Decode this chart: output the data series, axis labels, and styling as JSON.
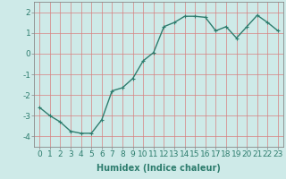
{
  "x": [
    0,
    1,
    2,
    3,
    4,
    5,
    6,
    7,
    8,
    9,
    10,
    11,
    12,
    13,
    14,
    15,
    16,
    17,
    18,
    19,
    20,
    21,
    22,
    23
  ],
  "y": [
    -2.6,
    -3.0,
    -3.3,
    -3.75,
    -3.85,
    -3.85,
    -3.2,
    -1.8,
    -1.65,
    -1.2,
    -0.35,
    0.05,
    1.3,
    1.5,
    1.8,
    1.8,
    1.75,
    1.1,
    1.3,
    0.75,
    1.3,
    1.85,
    1.5,
    1.1
  ],
  "line_color": "#2e7d6e",
  "marker": "+",
  "marker_size": 3,
  "bg_color": "#ceeae8",
  "grid_major_color": "#c8c8c8",
  "grid_minor_color": "#e0e0e0",
  "xlabel": "Humidex (Indice chaleur)",
  "xlim": [
    -0.5,
    23.5
  ],
  "ylim": [
    -4.5,
    2.5
  ],
  "yticks": [
    -4,
    -3,
    -2,
    -1,
    0,
    1,
    2
  ],
  "xticks": [
    0,
    1,
    2,
    3,
    4,
    5,
    6,
    7,
    8,
    9,
    10,
    11,
    12,
    13,
    14,
    15,
    16,
    17,
    18,
    19,
    20,
    21,
    22,
    23
  ],
  "xlabel_fontsize": 7,
  "tick_fontsize": 6.5,
  "linewidth": 1.0
}
